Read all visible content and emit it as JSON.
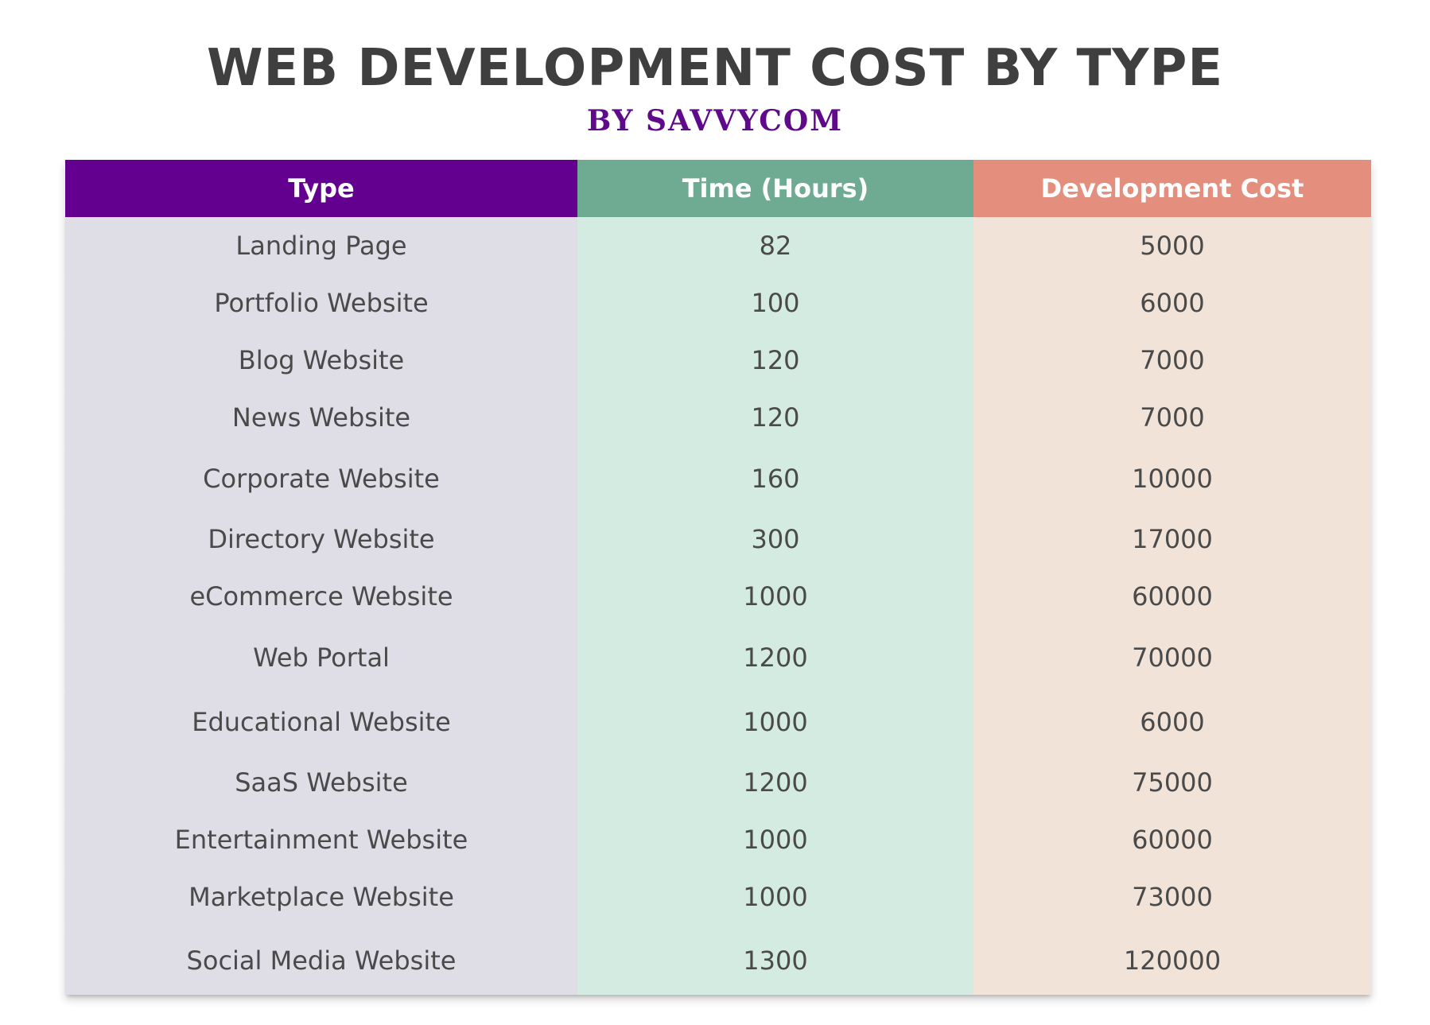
{
  "title": "WEB DEVELOPMENT COST BY TYPE",
  "subtitle": "BY SAVVYCOM",
  "colors": {
    "type_header": "#630090",
    "time_header": "#6fab93",
    "cost_header": "#e48f7e",
    "type_cell": "#dfdde6",
    "time_cell": "#d3ebe1",
    "cost_cell": "#f2e3d8",
    "subtitle": "#5f0a8b"
  },
  "chart_data": {
    "type": "table",
    "columns": [
      "Type",
      "Time (Hours)",
      "Development Cost"
    ],
    "rows": [
      {
        "type": "Landing Page",
        "time": "82",
        "cost": "5000"
      },
      {
        "type": "Portfolio Website",
        "time": "100",
        "cost": "6000"
      },
      {
        "type": "Blog Website",
        "time": "120",
        "cost": "7000"
      },
      {
        "type": "News Website",
        "time": "120",
        "cost": "7000"
      },
      {
        "type": "Corporate Website",
        "time": "160",
        "cost": "10000"
      },
      {
        "type": "Directory Website",
        "time": "300",
        "cost": "17000"
      },
      {
        "type": "eCommerce Website",
        "time": "1000",
        "cost": "60000"
      },
      {
        "type": "Web Portal",
        "time": "1200",
        "cost": "70000"
      },
      {
        "type": "Educational Website",
        "time": "1000",
        "cost": "6000"
      },
      {
        "type": "SaaS Website",
        "time": "1200",
        "cost": "75000"
      },
      {
        "type": "Entertainment Website",
        "time": "1000",
        "cost": "60000"
      },
      {
        "type": "Marketplace Website",
        "time": "1000",
        "cost": "73000"
      },
      {
        "type": "Social Media Website",
        "time": "1300",
        "cost": "120000"
      }
    ]
  }
}
